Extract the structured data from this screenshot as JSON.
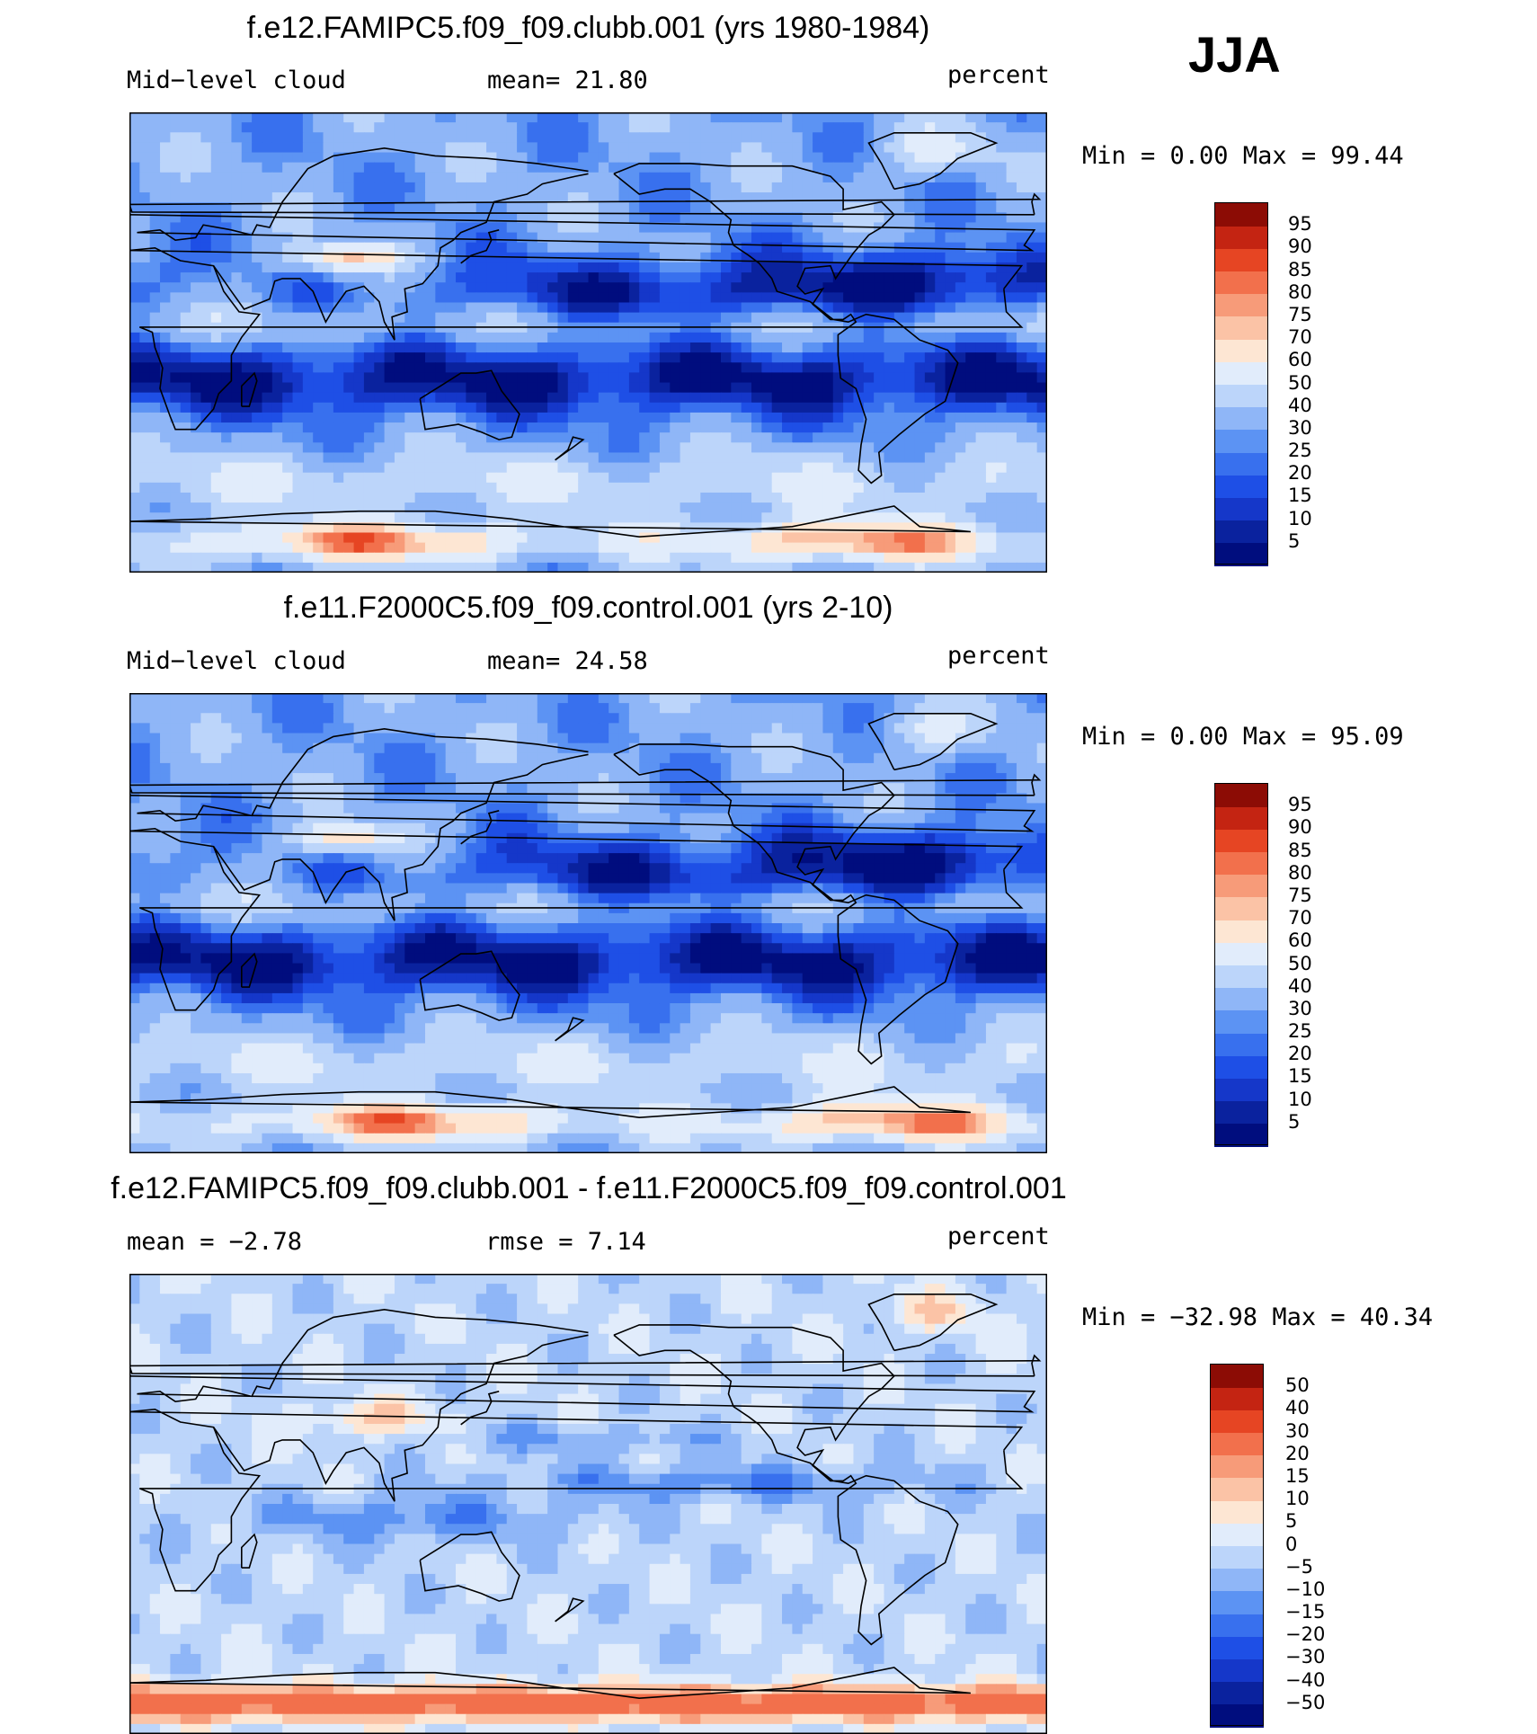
{
  "season": "JJA",
  "panels": [
    {
      "title": "f.e12.FAMIPC5.f09_f09.clubb.001 (yrs 1980-1984)",
      "left_label": "Mid−level cloud",
      "center_label": "mean=   21.80",
      "units": "percent",
      "minmax": "Min =    0.00 Max =   99.44",
      "levels": [
        "5",
        "10",
        "15",
        "20",
        "25",
        "30",
        "40",
        "50",
        "60",
        "70",
        "75",
        "80",
        "85",
        "90",
        "95"
      ],
      "colors": [
        "#000d7e",
        "#0a229e",
        "#1537c9",
        "#1e4fe6",
        "#3870ee",
        "#5c93f3",
        "#8fb6f7",
        "#bcd5fa",
        "#e1ecfb",
        "#fde6d3",
        "#fbc3a6",
        "#f79b79",
        "#f2704c",
        "#e64523",
        "#c42412",
        "#8c0c05"
      ],
      "kind": "abs",
      "seed": 11
    },
    {
      "title": "f.e11.F2000C5.f09_f09.control.001 (yrs 2-10)",
      "left_label": "Mid−level cloud",
      "center_label": "mean=   24.58",
      "units": "percent",
      "minmax": "Min =    0.00 Max =   95.09",
      "levels": [
        "5",
        "10",
        "15",
        "20",
        "25",
        "30",
        "40",
        "50",
        "60",
        "70",
        "75",
        "80",
        "85",
        "90",
        "95"
      ],
      "colors": [
        "#000d7e",
        "#0a229e",
        "#1537c9",
        "#1e4fe6",
        "#3870ee",
        "#5c93f3",
        "#8fb6f7",
        "#bcd5fa",
        "#e1ecfb",
        "#fde6d3",
        "#fbc3a6",
        "#f79b79",
        "#f2704c",
        "#e64523",
        "#c42412",
        "#8c0c05"
      ],
      "kind": "abs",
      "seed": 23
    },
    {
      "title": "f.e12.FAMIPC5.f09_f09.clubb.001 - f.e11.F2000C5.f09_f09.control.001",
      "left_label": "mean =   −2.78",
      "center_label": "rmse =    7.14",
      "units": "percent",
      "minmax": "Min = −32.98 Max =   40.34",
      "levels": [
        "−50",
        "−40",
        "−30",
        "−20",
        "−15",
        "−10",
        "−5",
        "0",
        "5",
        "10",
        "15",
        "20",
        "30",
        "40",
        "50"
      ],
      "colors": [
        "#000d7e",
        "#0a229e",
        "#1537c9",
        "#1e4fe6",
        "#3870ee",
        "#5c93f3",
        "#8fb6f7",
        "#bcd5fa",
        "#e1ecfb",
        "#fde6d3",
        "#fbc3a6",
        "#f79b79",
        "#f2704c",
        "#e64523",
        "#c42412",
        "#8c0c05"
      ],
      "kind": "diff",
      "seed": 37
    }
  ]
}
